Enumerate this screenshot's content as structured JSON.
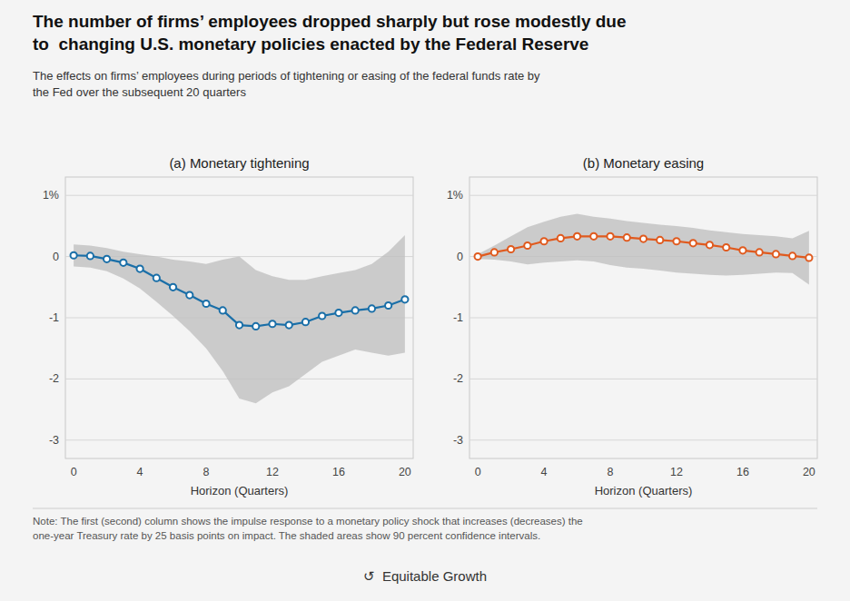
{
  "title": "The number of firms’ employees dropped sharply but rose modestly due\nto  changing U.S. monetary policies enacted by the Federal Reserve",
  "subtitle": "The effects on firms’ employees during periods of tightening or easing of the federal funds rate by\nthe Fed over the subsequent 20 quarters",
  "note": "Note: The first (second) column shows the impulse response to a monetary policy shock that increases (decreases) the\none-year Treasury rate by 25 basis points on impact. The shaded areas show 90 percent confidence intervals.",
  "credit": "↺  Equitable Growth",
  "chart_data": [
    {
      "type": "line",
      "title": "(a) Monetary tightening",
      "xlabel": "Horizon (Quarters)",
      "x": [
        0,
        1,
        2,
        3,
        4,
        5,
        6,
        7,
        8,
        9,
        10,
        11,
        12,
        13,
        14,
        15,
        16,
        17,
        18,
        19,
        20
      ],
      "values": [
        0.02,
        0.01,
        -0.04,
        -0.1,
        -0.2,
        -0.35,
        -0.5,
        -0.63,
        -0.77,
        -0.88,
        -1.12,
        -1.14,
        -1.1,
        -1.12,
        -1.07,
        -0.97,
        -0.92,
        -0.88,
        -0.85,
        -0.8,
        -0.7
      ],
      "upper": [
        0.2,
        0.18,
        0.14,
        0.08,
        0.04,
        0.0,
        -0.05,
        -0.08,
        -0.12,
        -0.05,
        0.0,
        -0.22,
        -0.32,
        -0.38,
        -0.38,
        -0.32,
        -0.27,
        -0.22,
        -0.12,
        0.08,
        0.35
      ],
      "lower": [
        -0.16,
        -0.18,
        -0.24,
        -0.36,
        -0.52,
        -0.74,
        -0.97,
        -1.22,
        -1.5,
        -1.87,
        -2.32,
        -2.4,
        -2.22,
        -2.12,
        -1.92,
        -1.72,
        -1.62,
        -1.52,
        -1.57,
        -1.62,
        -1.57
      ],
      "color": "#1a6fa8",
      "marker": "circle",
      "xlim": [
        -0.5,
        20.5
      ],
      "xticks": [
        0,
        4,
        8,
        12,
        16,
        20
      ],
      "ylim": [
        -3.3,
        1.3
      ],
      "yticks": [
        {
          "value": 1,
          "label": "1%"
        },
        0,
        -1,
        -2,
        -3
      ],
      "grid": true
    },
    {
      "type": "line",
      "title": "(b) Monetary easing",
      "xlabel": "Horizon (Quarters)",
      "x": [
        0,
        1,
        2,
        3,
        4,
        5,
        6,
        7,
        8,
        9,
        10,
        11,
        12,
        13,
        14,
        15,
        16,
        17,
        18,
        19,
        20
      ],
      "values": [
        0.0,
        0.07,
        0.12,
        0.18,
        0.25,
        0.3,
        0.33,
        0.33,
        0.33,
        0.31,
        0.29,
        0.27,
        0.25,
        0.22,
        0.19,
        0.15,
        0.1,
        0.07,
        0.04,
        0.01,
        -0.02
      ],
      "upper": [
        0.04,
        0.18,
        0.33,
        0.48,
        0.57,
        0.65,
        0.7,
        0.65,
        0.62,
        0.58,
        0.55,
        0.52,
        0.5,
        0.47,
        0.43,
        0.4,
        0.37,
        0.35,
        0.33,
        0.3,
        0.42
      ],
      "lower": [
        -0.04,
        -0.05,
        -0.08,
        -0.13,
        -0.1,
        -0.08,
        -0.06,
        -0.08,
        -0.14,
        -0.18,
        -0.2,
        -0.23,
        -0.26,
        -0.28,
        -0.3,
        -0.31,
        -0.3,
        -0.28,
        -0.26,
        -0.27,
        -0.46
      ],
      "color": "#e05a1e",
      "marker": "circle",
      "xlim": [
        -0.5,
        20.5
      ],
      "xticks": [
        0,
        4,
        8,
        12,
        16,
        20
      ],
      "ylim": [
        -3.3,
        1.3
      ],
      "yticks": [
        {
          "value": 1,
          "label": "1%"
        },
        0,
        -1,
        -2,
        -3
      ],
      "grid": true
    }
  ]
}
